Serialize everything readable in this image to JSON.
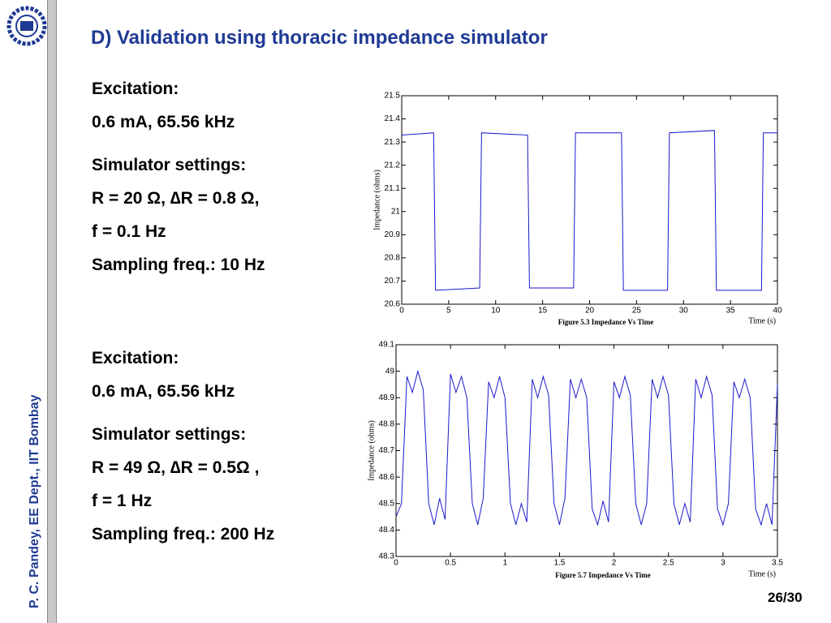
{
  "header": {
    "title": "D) Validation using thoracic impedance simulator"
  },
  "sidebar": {
    "author": "P. C. Pandey, EE Dept., IIT Bombay"
  },
  "footer": {
    "page": "26/30"
  },
  "blocks": [
    {
      "lines": [
        "Excitation:",
        "0.6 mA, 65.56 kHz",
        "Simulator settings:",
        "R = 20 Ω, ∆R = 0.8 Ω,",
        "f = 0.1 Hz",
        "Sampling freq.: 10 Hz"
      ]
    },
    {
      "lines": [
        "Excitation:",
        "0.6 mA, 65.56 kHz",
        "Simulator settings:",
        "R = 49 Ω, ∆R = 0.5Ω ,",
        "f = 1 Hz",
        "Sampling freq.: 200 Hz"
      ]
    }
  ],
  "chart_data": [
    {
      "type": "line",
      "caption": "Figure 5.3 Impedance Vs Time",
      "x_label": "Time (s)",
      "y_label": "Impedance (ohms)",
      "x": [
        0,
        3.4,
        3.6,
        8.3,
        8.5,
        13.4,
        13.6,
        18.3,
        18.5,
        23.4,
        23.6,
        28.3,
        28.5,
        33.3,
        33.5,
        38.3,
        38.5,
        40
      ],
      "series": [
        {
          "name": "Impedance",
          "color": "#1a1acc",
          "values": [
            21.33,
            21.34,
            20.66,
            20.67,
            21.34,
            21.33,
            20.67,
            20.67,
            21.34,
            21.34,
            20.66,
            20.66,
            21.34,
            21.35,
            20.66,
            20.66,
            21.34,
            21.34
          ]
        }
      ],
      "xlim": [
        0,
        40
      ],
      "ylim": [
        20.6,
        21.5
      ],
      "xticks": [
        0,
        5,
        10,
        15,
        20,
        25,
        30,
        35,
        40
      ],
      "yticks": [
        20.6,
        20.7,
        20.8,
        20.9,
        21,
        21.1,
        21.2,
        21.3,
        21.4,
        21.5
      ]
    },
    {
      "type": "line",
      "caption": "Figure 5.7 Impedance Vs Time",
      "x_label": "Time (s)",
      "y_label": "Impedance (ohms)",
      "x": [
        0,
        0.05,
        0.1,
        0.15,
        0.2,
        0.25,
        0.3,
        0.35,
        0.4,
        0.45,
        0.5,
        0.55,
        0.6,
        0.65,
        0.7,
        0.75,
        0.8,
        0.85,
        0.9,
        0.95,
        1,
        1.05,
        1.1,
        1.15,
        1.2,
        1.25,
        1.3,
        1.35,
        1.4,
        1.45,
        1.5,
        1.55,
        1.6,
        1.65,
        1.7,
        1.75,
        1.8,
        1.85,
        1.9,
        1.95,
        2,
        2.05,
        2.1,
        2.15,
        2.2,
        2.25,
        2.3,
        2.35,
        2.4,
        2.45,
        2.5,
        2.55,
        2.6,
        2.65,
        2.7,
        2.75,
        2.8,
        2.85,
        2.9,
        2.95,
        3,
        3.05,
        3.1,
        3.15,
        3.2,
        3.25,
        3.3,
        3.35,
        3.4,
        3.45,
        3.5
      ],
      "series": [
        {
          "name": "Impedance",
          "color": "#1a1acc",
          "values": [
            48.45,
            48.5,
            48.98,
            48.92,
            49,
            48.93,
            48.5,
            48.42,
            48.52,
            48.44,
            48.99,
            48.92,
            48.98,
            48.9,
            48.5,
            48.42,
            48.52,
            48.96,
            48.9,
            48.98,
            48.9,
            48.5,
            48.42,
            48.5,
            48.43,
            48.97,
            48.9,
            48.98,
            48.91,
            48.5,
            48.42,
            48.52,
            48.97,
            48.9,
            48.97,
            48.9,
            48.48,
            48.42,
            48.51,
            48.43,
            48.96,
            48.9,
            48.98,
            48.91,
            48.5,
            48.42,
            48.5,
            48.97,
            48.9,
            48.98,
            48.91,
            48.5,
            48.42,
            48.5,
            48.43,
            48.97,
            48.9,
            48.98,
            48.91,
            48.48,
            48.42,
            48.5,
            48.96,
            48.9,
            48.97,
            48.9,
            48.48,
            48.42,
            48.5,
            48.42,
            48.95
          ]
        }
      ],
      "xlim": [
        0,
        3.5
      ],
      "ylim": [
        48.3,
        49.1
      ],
      "xticks": [
        0,
        0.5,
        1,
        1.5,
        2,
        2.5,
        3,
        3.5
      ],
      "yticks": [
        48.3,
        48.4,
        48.5,
        48.6,
        48.7,
        48.8,
        48.9,
        49,
        49.1
      ]
    }
  ]
}
